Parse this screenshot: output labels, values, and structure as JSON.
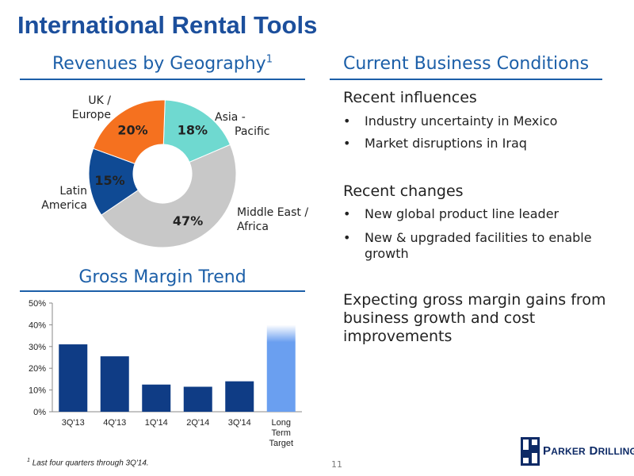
{
  "title": "International Rental Tools",
  "revenues": {
    "heading": "Revenues by Geography",
    "heading_sup": "1"
  },
  "conditions": {
    "heading": "Current Business Conditions",
    "influences_heading": "Recent influences",
    "influences": [
      "Industry uncertainty in Mexico",
      "Market disruptions in Iraq"
    ],
    "changes_heading": "Recent changes",
    "changes": [
      "New global product line leader",
      "New & upgraded facilities to enable growth"
    ],
    "conclusion": "Expecting gross margin gains from business growth and cost improvements"
  },
  "margin": {
    "heading": "Gross Margin Trend"
  },
  "footnote": {
    "sup": "1",
    "text": "Last four quarters through 3Q'14."
  },
  "page_number": "11",
  "logo": {
    "first_initial": "P",
    "first_rest": "ARKER",
    "second_initial": "D",
    "second_rest": "RILLING"
  },
  "chart_data": [
    {
      "type": "pie",
      "donut": true,
      "labels": [
        "Asia - Pacific",
        "Middle East / Africa",
        "Latin America",
        "UK / Europe"
      ],
      "label_lines": [
        [
          "Asia -",
          "Pacific"
        ],
        [
          "Middle East /",
          "Africa"
        ],
        [
          "Latin",
          "America"
        ],
        [
          "UK /",
          "Europe"
        ]
      ],
      "values": [
        18,
        47,
        15,
        20
      ],
      "value_labels": [
        "18%",
        "47%",
        "15%",
        "20%"
      ],
      "colors": [
        "#6fd9d0",
        "#c8c8c8",
        "#0f4a94",
        "#f5711f"
      ]
    },
    {
      "type": "bar",
      "categories": [
        "3Q'13",
        "4Q'13",
        "1Q'14",
        "2Q'14",
        "3Q'14",
        "Long Term Target"
      ],
      "category_lines": [
        [
          "3Q'13"
        ],
        [
          "4Q'13"
        ],
        [
          "1Q'14"
        ],
        [
          "2Q'14"
        ],
        [
          "3Q'14"
        ],
        [
          "Long",
          "Term",
          "Target"
        ]
      ],
      "values": [
        31,
        25.5,
        12.5,
        11.5,
        14,
        40
      ],
      "ylim": [
        0,
        50
      ],
      "yticks": [
        0,
        10,
        20,
        30,
        40,
        50
      ],
      "ytick_labels": [
        "0%",
        "10%",
        "20%",
        "30%",
        "40%",
        "50%"
      ],
      "bar_color": "#0f3c85",
      "target_color": "#6a9ff0",
      "grid": false
    }
  ]
}
